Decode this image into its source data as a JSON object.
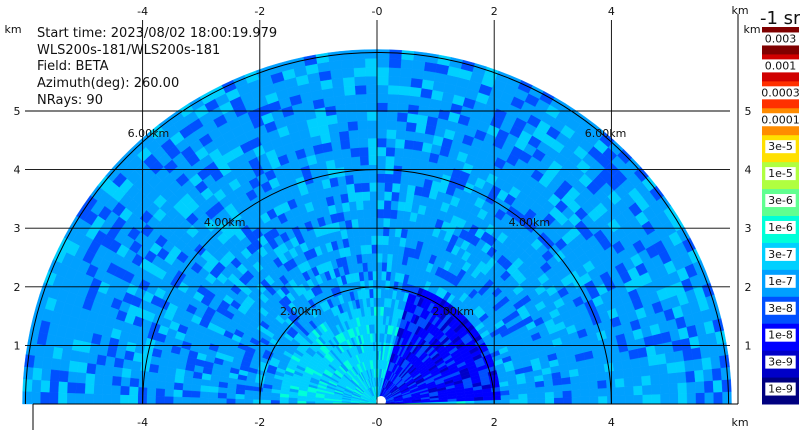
{
  "info": {
    "start_time": "Start time: 2023/08/02 18:00:19.979",
    "instrument": "WLS200s-181/WLS200s-181",
    "field": "Field: BETA",
    "azimuth": "Azimuth(deg): 260.00",
    "nrays": "NRays: 90"
  },
  "colorbar": {
    "title": "-1 sr",
    "labels": [
      "1e-9",
      "3e-9",
      "1e-8",
      "3e-8",
      "1e-7",
      "3e-7",
      "1e-6",
      "3e-6",
      "1e-5",
      "3e-5",
      "0.0001",
      "0.0003",
      "0.001",
      "0.003"
    ],
    "colors": [
      "#000080",
      "#0000c8",
      "#0000ff",
      "#0050ff",
      "#00a0ff",
      "#00d0ff",
      "#00ffd8",
      "#60ff90",
      "#b0ff40",
      "#ffe000",
      "#ff8c00",
      "#ff3000",
      "#d00000",
      "#800000"
    ]
  },
  "chart_data": {
    "type": "heatmap",
    "subtype": "RHI range-height polar scan",
    "x_unit": "km",
    "y_unit": "km",
    "x_ticks": [
      "-4",
      "-2",
      "-0",
      "2",
      "4"
    ],
    "y_ticks": [
      "1",
      "2",
      "3",
      "4",
      "5"
    ],
    "xlim": [
      -6,
      6
    ],
    "ylim": [
      0,
      5.9
    ],
    "range_rings": [
      {
        "range_km": 2,
        "label": "2.00km"
      },
      {
        "range_km": 4,
        "label": "4.00km"
      },
      {
        "range_km": 6,
        "label": "6.00km"
      }
    ],
    "grid": true,
    "field": "BETA",
    "dominant_value_range": [
      "1e-8",
      "1e-7"
    ]
  }
}
